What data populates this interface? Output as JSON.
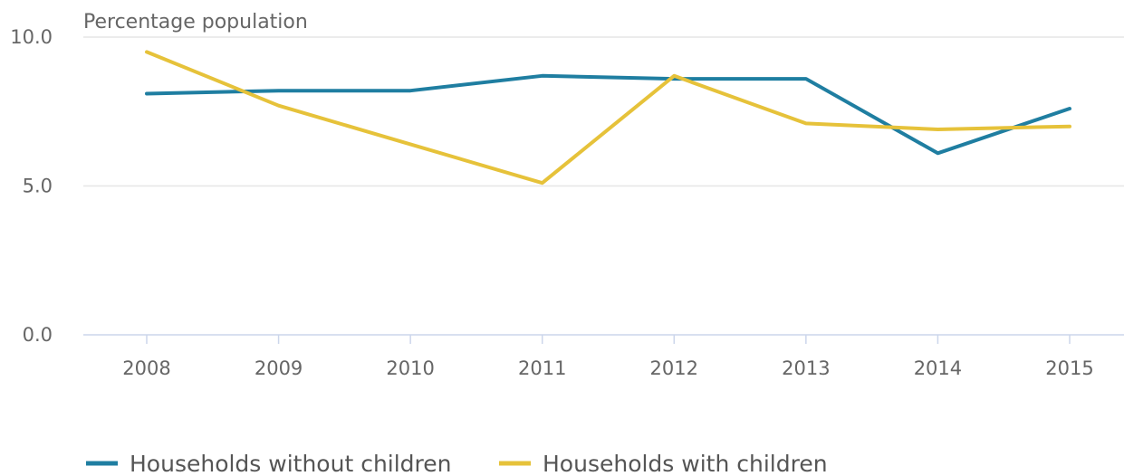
{
  "chart_data": {
    "type": "line",
    "ylabel": "Percentage population",
    "categories": [
      "2008",
      "2009",
      "2010",
      "2011",
      "2012",
      "2013",
      "2014",
      "2015"
    ],
    "ylim": [
      0,
      10
    ],
    "yticks": [
      "0.0",
      "5.0",
      "10.0"
    ],
    "ytick_values": [
      0,
      5,
      10
    ],
    "grid": true,
    "legend_position": "bottom-left",
    "series": [
      {
        "name": "Households without children",
        "color": "#1f7ea1",
        "values": [
          8.1,
          8.2,
          8.2,
          8.7,
          8.6,
          8.6,
          6.1,
          7.6
        ]
      },
      {
        "name": "Households with children",
        "color": "#e6c23a",
        "values": [
          9.5,
          7.7,
          6.4,
          5.1,
          8.7,
          7.1,
          6.9,
          7.0
        ]
      }
    ]
  }
}
